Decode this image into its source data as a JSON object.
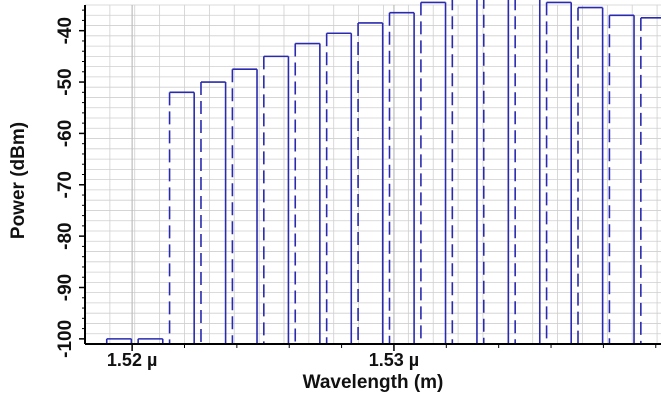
{
  "chart_data": {
    "type": "bar",
    "title": "",
    "xlabel": "Wavelength (m)",
    "ylabel": "Power (dBm)",
    "xlim": [
      1.5182,
      1.5402
    ],
    "ylim": [
      -101,
      -35
    ],
    "x_ticks": [
      {
        "value": 1.52,
        "label": "1.52 µ"
      },
      {
        "value": 1.53,
        "label": "1.53 µ"
      }
    ],
    "y_ticks": [
      {
        "value": -40,
        "label": "-40"
      },
      {
        "value": -50,
        "label": "-50"
      },
      {
        "value": -60,
        "label": "-60"
      },
      {
        "value": -70,
        "label": "-70"
      },
      {
        "value": -80,
        "label": "-80"
      },
      {
        "value": -90,
        "label": "-90"
      },
      {
        "value": -100,
        "label": "-100"
      }
    ],
    "grid": true,
    "series": [
      {
        "x": [
          1.5195,
          1.5207,
          1.5219,
          1.5231,
          1.5243,
          1.5255,
          1.5267,
          1.5279,
          1.5291,
          1.5303,
          1.5315,
          1.5327,
          1.5339,
          1.5351,
          1.5363,
          1.5375,
          1.5387,
          1.5399
        ],
        "values": [
          -100,
          -100,
          -52,
          -50,
          -47.5,
          -45,
          -42.5,
          -40.5,
          -38.5,
          -36.5,
          -34.5,
          -33.5,
          -33.2,
          -33.5,
          -34.5,
          -35.5,
          -37,
          -37.5
        ]
      }
    ],
    "colors": {
      "bars": "#2a2ab0",
      "grid": "#cfcfcf",
      "axis": "#000000"
    }
  }
}
